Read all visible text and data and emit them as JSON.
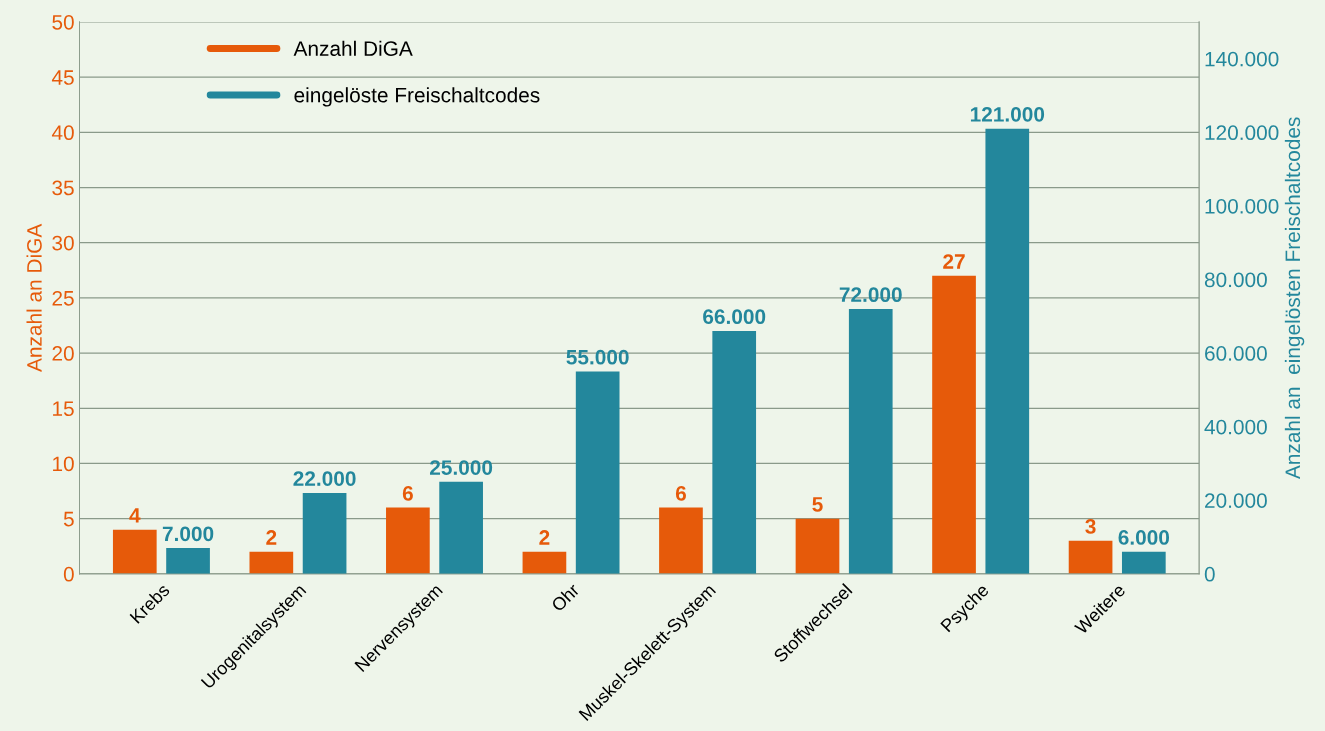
{
  "chart_data": {
    "type": "bar",
    "ylabel": "Anzahl an DiGA",
    "y2label": "Anzahl an  eingelösten Freischaltcodes",
    "categories": [
      "Krebs",
      "Urogenitalsystem",
      "Nervensystem",
      "Ohr",
      "Muskel-Skelett-System",
      "Stoffwechsel",
      "Psyche",
      "Weitere"
    ],
    "series": [
      {
        "name": "Anzahl DiGA",
        "color": "#e65a0a",
        "values": [
          4,
          2,
          6,
          2,
          6,
          5,
          27,
          3
        ],
        "value_labels": [
          "4",
          "2",
          "6",
          "2",
          "6",
          "5",
          "27",
          "3"
        ]
      },
      {
        "name": "eingelöste Freischaltcodes",
        "color": "#23879c",
        "axis": "y2",
        "values": [
          7000,
          22000,
          25000,
          55000,
          66000,
          72000,
          121000,
          6000
        ],
        "value_labels": [
          "7.000",
          "22.000",
          "25.000",
          "55.000",
          "66.000",
          "72.000",
          "121.000",
          "6.000"
        ]
      }
    ],
    "ylim": [
      0,
      50
    ],
    "yticks": [
      0,
      5,
      10,
      15,
      20,
      25,
      30,
      35,
      40,
      45,
      50
    ],
    "y2lim": [
      0,
      150000
    ],
    "y2ticks": [
      {
        "value": 0,
        "label": "0"
      },
      {
        "value": 20000,
        "label": "20.000"
      },
      {
        "value": 40000,
        "label": "40.000"
      },
      {
        "value": 60000,
        "label": "60.000"
      },
      {
        "value": 80000,
        "label": "80.000"
      },
      {
        "value": 100000,
        "label": "100.000"
      },
      {
        "value": 120000,
        "label": "120.000"
      },
      {
        "value": 140000,
        "label": "140.000"
      }
    ],
    "grid": "y",
    "legend": "top left"
  }
}
